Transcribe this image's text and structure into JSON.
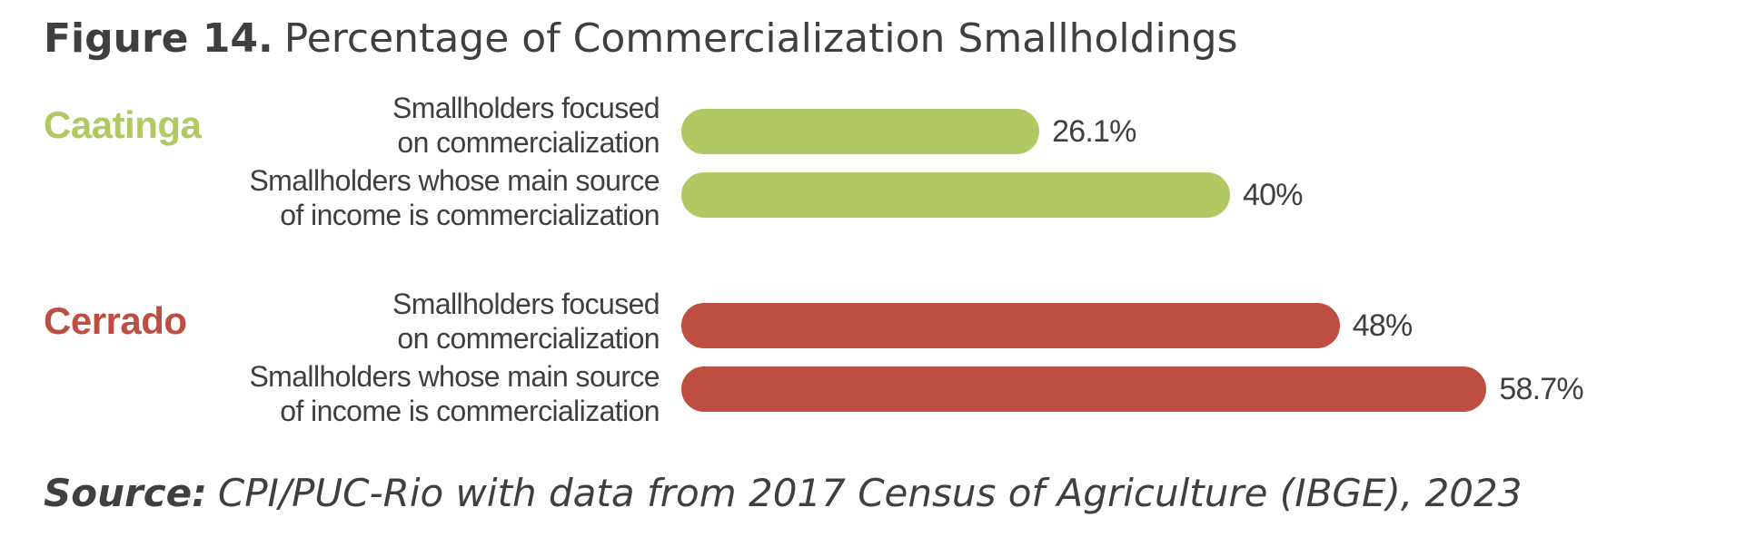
{
  "title": {
    "figure_label": "Figure 14.",
    "text": "Percentage of Commercialization Smallholdings"
  },
  "source": {
    "label": "Source:",
    "text": "CPI/PUC-Rio with data from 2017 Census of Agriculture (IBGE), 2023"
  },
  "chart_data": {
    "type": "bar",
    "orientation": "horizontal",
    "xlim": [
      0,
      100
    ],
    "groups": [
      {
        "name": "Caatinga",
        "color": "#b1c863",
        "bars": [
          {
            "label_line1": "Smallholders focused",
            "label_line2": "on commercialization",
            "value": 26.1,
            "value_label": "26.1%"
          },
          {
            "label_line1": "Smallholders whose main source",
            "label_line2": "of income is commercialization",
            "value": 40,
            "value_label": "40%"
          }
        ]
      },
      {
        "name": "Cerrado",
        "color": "#be4e42",
        "bars": [
          {
            "label_line1": "Smallholders focused",
            "label_line2": "on commercialization",
            "value": 48,
            "value_label": "48%"
          },
          {
            "label_line1": "Smallholders whose main source",
            "label_line2": "of income is commercialization",
            "value": 58.7,
            "value_label": "58.7%"
          }
        ]
      }
    ]
  }
}
